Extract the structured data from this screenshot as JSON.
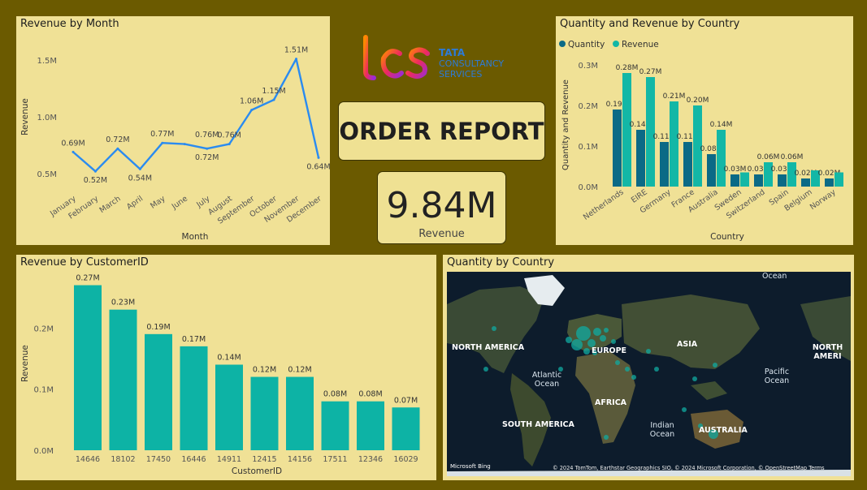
{
  "header": {
    "report_title": "ORDER REPORT",
    "logo": {
      "brand": "TATA",
      "line2": "CONSULTANCY",
      "line3": "SERVICES"
    }
  },
  "kpi": {
    "value": "9.84M",
    "label": "Revenue"
  },
  "map": {
    "title": "Quantity by Country",
    "labels": {
      "north_america": "NORTH AMERICA",
      "north_america_2": "NORTH AMERI",
      "europe": "EUROPE",
      "asia": "ASIA",
      "africa": "AFRICA",
      "south_america": "SOUTH AMERICA",
      "australia": "AUSTRALIA",
      "atlantic": "Atlantic Ocean",
      "pacific": "Pacific Ocean",
      "indian": "Indian Ocean",
      "ocean": "Ocean"
    },
    "attribution": "© 2024 TomTom, Earthstar Geographics SIO, © 2024 Microsoft Corporation, © OpenStreetMap  Terms",
    "bing": "Microsoft Bing"
  },
  "chart_data": [
    {
      "type": "line",
      "title": "Revenue by Month",
      "xlabel": "Month",
      "ylabel": "Revenue",
      "categories": [
        "January",
        "February",
        "March",
        "April",
        "May",
        "June",
        "July",
        "August",
        "September",
        "October",
        "November",
        "December"
      ],
      "values": [
        0.69,
        0.52,
        0.72,
        0.54,
        0.77,
        0.76,
        0.72,
        0.76,
        1.06,
        1.15,
        1.51,
        0.64
      ],
      "data_labels": [
        "0.69M",
        "0.52M",
        "0.72M",
        "0.54M",
        "0.77M",
        "",
        "0.72M",
        "0.76M",
        "1.06M",
        "1.15M",
        "1.51M",
        "0.64M"
      ],
      "extra_label": {
        "index": 6,
        "text": "0.76M"
      },
      "yticks": [
        "0.5M",
        "1.0M",
        "1.5M"
      ],
      "ytick_values": [
        0.5,
        1.0,
        1.5
      ],
      "ylim": [
        0.4,
        1.6
      ],
      "color": "#2a8bf0"
    },
    {
      "type": "bar",
      "title": "Quantity and Revenue by Country",
      "xlabel": "Country",
      "ylabel": "Quantity and Revenue",
      "categories": [
        "Netherlands",
        "EIRE",
        "Germany",
        "France",
        "Australia",
        "Sweden",
        "Switzerland",
        "Spain",
        "Belgium",
        "Norway"
      ],
      "series": [
        {
          "name": "Quantity",
          "color": "#0b6a86",
          "values": [
            0.19,
            0.14,
            0.11,
            0.11,
            0.08,
            0.03,
            0.03,
            0.03,
            0.02,
            0.02
          ],
          "labels": [
            "0.19M",
            "0.14M",
            "0.11M",
            "0.11M",
            "0.08M",
            "0.03M",
            "0.03M",
            "0.03M",
            "0.02M",
            "0.02M"
          ]
        },
        {
          "name": "Revenue",
          "color": "#13b7a6",
          "values": [
            0.28,
            0.27,
            0.21,
            0.2,
            0.14,
            0.035,
            0.06,
            0.06,
            0.04,
            0.035
          ],
          "labels": [
            "0.28M",
            "0.27M",
            "0.21M",
            "0.20M",
            "0.14M",
            "",
            "0.06M",
            "0.06M",
            "",
            ""
          ]
        }
      ],
      "yticks": [
        "0.0M",
        "0.1M",
        "0.2M",
        "0.3M"
      ],
      "ytick_values": [
        0,
        0.1,
        0.2,
        0.3
      ],
      "ylim": [
        0,
        0.3
      ],
      "legend": "top-left"
    },
    {
      "type": "bar",
      "title": "Revenue by CustomerID",
      "xlabel": "CustomerID",
      "ylabel": "Revenue",
      "categories": [
        "14646",
        "18102",
        "17450",
        "16446",
        "14911",
        "12415",
        "14156",
        "17511",
        "12346",
        "16029"
      ],
      "values": [
        0.27,
        0.23,
        0.19,
        0.17,
        0.14,
        0.12,
        0.12,
        0.08,
        0.08,
        0.07
      ],
      "labels": [
        "0.27M",
        "0.23M",
        "0.19M",
        "0.17M",
        "0.14M",
        "0.12M",
        "0.12M",
        "0.08M",
        "0.08M",
        "0.07M"
      ],
      "yticks": [
        "0.0M",
        "0.1M",
        "0.2M"
      ],
      "ytick_values": [
        0,
        0.1,
        0.2
      ],
      "ylim": [
        0,
        0.28
      ],
      "color": "#0db3a5"
    }
  ]
}
